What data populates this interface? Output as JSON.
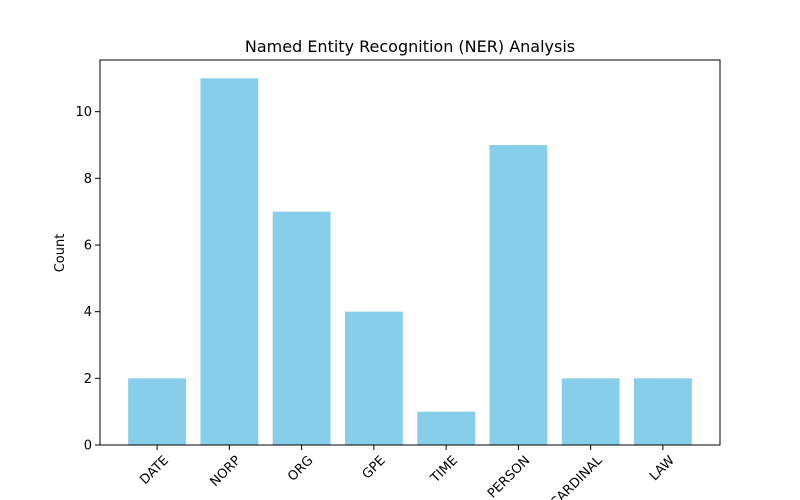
{
  "chart_data": {
    "type": "bar",
    "title": "Named Entity Recognition (NER) Analysis",
    "xlabel": "",
    "ylabel": "Count",
    "categories": [
      "DATE",
      "NORP",
      "ORG",
      "GPE",
      "TIME",
      "PERSON",
      "CARDINAL",
      "LAW"
    ],
    "values": [
      2,
      11,
      7,
      4,
      1,
      9,
      2,
      2
    ],
    "yticks": [
      0,
      2,
      4,
      6,
      8,
      10
    ],
    "ylim": [
      0,
      11.55
    ],
    "bar_color": "#87ceeb",
    "grid": false,
    "legend": "none"
  }
}
